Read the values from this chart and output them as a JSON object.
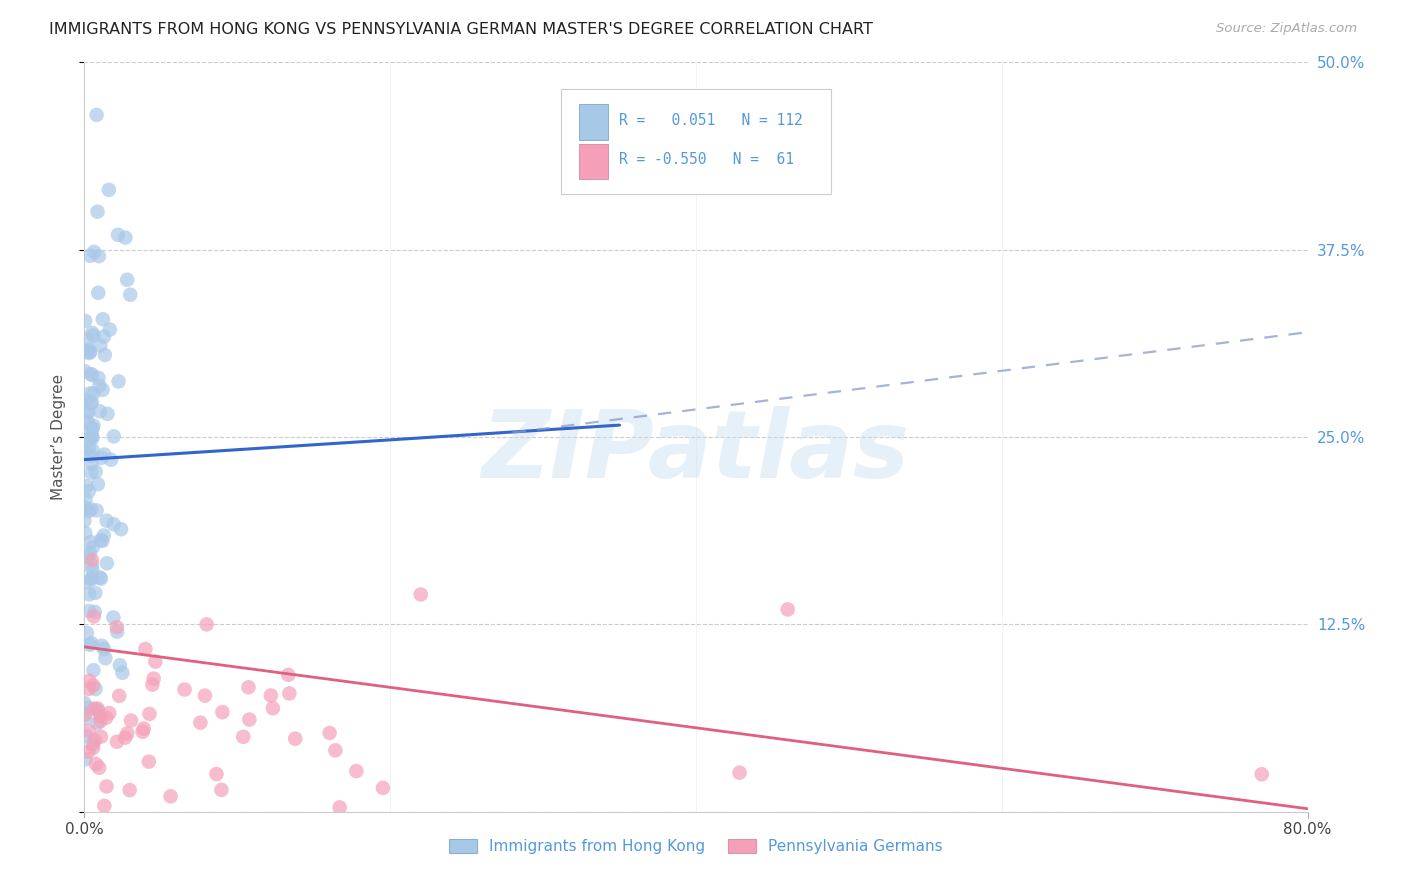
{
  "title": "IMMIGRANTS FROM HONG KONG VS PENNSYLVANIA GERMAN MASTER'S DEGREE CORRELATION CHART",
  "source": "Source: ZipAtlas.com",
  "ylabel": "Master’s Degree",
  "xlim": [
    0.0,
    0.8
  ],
  "ylim": [
    0.0,
    0.5
  ],
  "yticks": [
    0.0,
    0.125,
    0.25,
    0.375,
    0.5
  ],
  "ytick_labels": [
    "",
    "12.5%",
    "25.0%",
    "37.5%",
    "50.0%"
  ],
  "blue_color": "#a8c8e8",
  "blue_line_color": "#3366cc",
  "blue_dash_color": "#8899cc",
  "pink_color": "#f5a0b8",
  "pink_line_color": "#e06080",
  "right_tick_color": "#5599dd",
  "legend_label_blue": "Immigrants from Hong Kong",
  "legend_label_pink": "Pennsylvania Germans",
  "watermark": "ZIPatlas",
  "blue_line_x0": 0.0,
  "blue_line_y0": 0.235,
  "blue_line_x1": 0.35,
  "blue_line_y1": 0.258,
  "dash_line_x0": 0.28,
  "dash_line_y0": 0.253,
  "dash_line_x1": 0.8,
  "dash_line_y1": 0.32,
  "pink_line_x0": 0.0,
  "pink_line_y0": 0.11,
  "pink_line_x1": 0.8,
  "pink_line_y1": 0.002
}
